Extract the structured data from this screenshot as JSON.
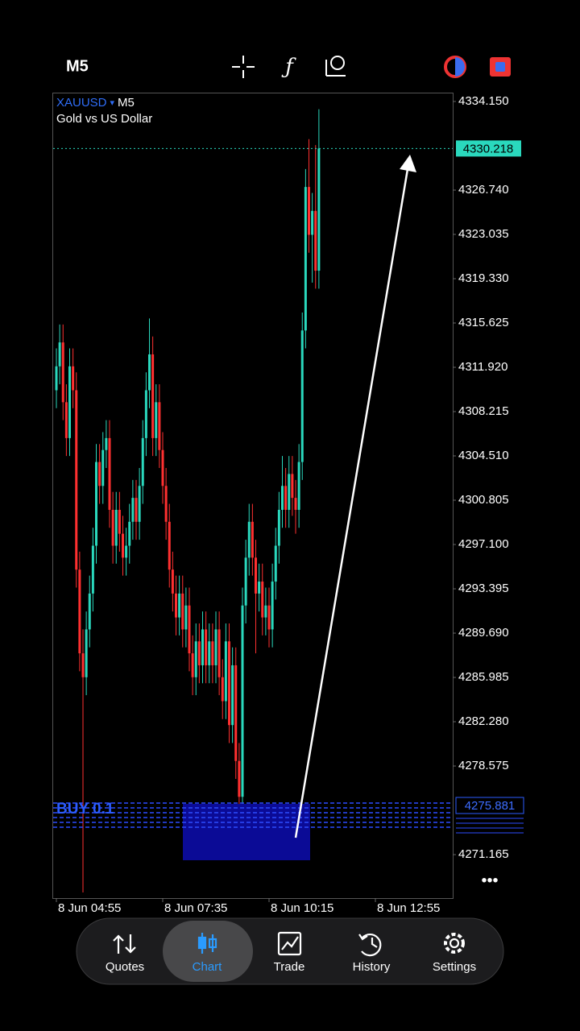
{
  "header": {
    "timeframe": "M5"
  },
  "chart": {
    "type": "candlestick",
    "symbol": "XAUUSD",
    "timeframe": "M5",
    "description": "Gold vs US Dollar",
    "bull_color": "#2ad8bd",
    "bear_color": "#ff3030",
    "ylim": [
      4267.53,
      4334.89
    ],
    "yticks": [
      {
        "value": 4334.15,
        "label": "4334.150"
      },
      {
        "value": 4326.74,
        "label": "4326.740"
      },
      4323.035,
      {
        "value": 4319.33,
        "label": "4319.330"
      },
      4315.625,
      {
        "value": 4311.92,
        "label": "4311.920"
      },
      4308.215,
      {
        "value": 4304.51,
        "label": "4304.510"
      },
      4300.805,
      {
        "value": 4297.1,
        "label": "4297.100"
      },
      4293.395,
      {
        "value": 4289.69,
        "label": "4289.690"
      },
      4285.985,
      {
        "value": 4282.28,
        "label": "4282.280"
      },
      4278.575,
      4271.165
    ],
    "bid": 4330.218,
    "position": {
      "label": "BUY 0.1",
      "price": 4275.881
    },
    "time_labels": [
      "8 Jun 04:55",
      "8 Jun 07:35",
      "8 Jun 10:15",
      "8 Jun 12:55"
    ],
    "ohlc": [
      [
        4310,
        4313.5,
        4308.5,
        4312
      ],
      [
        4312,
        4315.5,
        4310.5,
        4314
      ],
      [
        4314,
        4315.5,
        4307.5,
        4309
      ],
      [
        4309,
        4310.5,
        4304.5,
        4306
      ],
      [
        4306,
        4313.5,
        4304.5,
        4312
      ],
      [
        4312,
        4313.5,
        4308.5,
        4310
      ],
      [
        4310,
        4311.5,
        4293.5,
        4295
      ],
      [
        4295,
        4296.5,
        4286.5,
        4288
      ],
      [
        4288,
        4290,
        4268,
        4286
      ],
      [
        4286,
        4291.5,
        4284.5,
        4290
      ],
      [
        4290,
        4294.5,
        4288.5,
        4293
      ],
      [
        4293,
        4298.5,
        4291.5,
        4297
      ],
      [
        4297,
        4305.5,
        4295.5,
        4304
      ],
      [
        4304,
        4305.5,
        4300.5,
        4302
      ],
      [
        4302,
        4306.5,
        4300.5,
        4305
      ],
      [
        4305,
        4307.5,
        4303.5,
        4306
      ],
      [
        4306,
        4307.5,
        4298.5,
        4300
      ],
      [
        4300,
        4301.5,
        4295.5,
        4297
      ],
      [
        4297,
        4301.5,
        4295.5,
        4300
      ],
      [
        4300,
        4301.5,
        4296.5,
        4298
      ],
      [
        4298,
        4299.5,
        4294.5,
        4296
      ],
      [
        4296,
        4298.5,
        4294.5,
        4297
      ],
      [
        4297,
        4300.5,
        4295.5,
        4299
      ],
      [
        4299,
        4302.5,
        4297.5,
        4301
      ],
      [
        4301,
        4302.5,
        4297.5,
        4299
      ],
      [
        4299,
        4303.5,
        4297.5,
        4302
      ],
      [
        4302,
        4307.5,
        4300.5,
        4306
      ],
      [
        4306,
        4311.5,
        4304.5,
        4310
      ],
      [
        4310,
        4316,
        4308.5,
        4313
      ],
      [
        4313,
        4314.5,
        4304.5,
        4306
      ],
      [
        4306,
        4310.5,
        4304.5,
        4309
      ],
      [
        4309,
        4310.5,
        4303.5,
        4305
      ],
      [
        4305,
        4306.5,
        4300.5,
        4302
      ],
      [
        4302,
        4303.5,
        4297.5,
        4299
      ],
      [
        4299,
        4300.5,
        4293.5,
        4295
      ],
      [
        4295,
        4296.5,
        4291.5,
        4293
      ],
      [
        4293,
        4294.5,
        4289.5,
        4291
      ],
      [
        4291,
        4294.5,
        4289.5,
        4293
      ],
      [
        4293,
        4294.5,
        4288.5,
        4290
      ],
      [
        4290,
        4293.5,
        4288.5,
        4292
      ],
      [
        4292,
        4293.5,
        4286.5,
        4288
      ],
      [
        4288,
        4289.5,
        4284.5,
        4286
      ],
      [
        4286,
        4290.5,
        4284.5,
        4289
      ],
      [
        4289,
        4290.5,
        4285.5,
        4287
      ],
      [
        4287,
        4291.5,
        4285.5,
        4290
      ],
      [
        4290,
        4291.5,
        4285.5,
        4287
      ],
      [
        4287,
        4290.5,
        4285.5,
        4289
      ],
      [
        4289,
        4290.5,
        4285.5,
        4287
      ],
      [
        4287,
        4291.5,
        4285.5,
        4290
      ],
      [
        4290,
        4291.5,
        4284.5,
        4286
      ],
      [
        4286,
        4287.5,
        4282.5,
        4284
      ],
      [
        4284,
        4290.5,
        4282.5,
        4289
      ],
      [
        4289,
        4290.5,
        4280.5,
        4282
      ],
      [
        4282,
        4288.5,
        4280.5,
        4287
      ],
      [
        4287,
        4288.5,
        4277.5,
        4279
      ],
      [
        4279,
        4280.5,
        4274,
        4276
      ],
      [
        4276,
        4293.5,
        4274.5,
        4292
      ],
      [
        4292,
        4297.5,
        4290.5,
        4296
      ],
      [
        4296,
        4300.5,
        4294.5,
        4299
      ],
      [
        4299,
        4300.5,
        4294.5,
        4296
      ],
      [
        4296,
        4297.5,
        4288,
        4293
      ],
      [
        4293,
        4295.5,
        4291.5,
        4294
      ],
      [
        4294,
        4295.5,
        4289.5,
        4291
      ],
      [
        4291,
        4293.5,
        4289.5,
        4292
      ],
      [
        4292,
        4293.5,
        4288.5,
        4290
      ],
      [
        4290,
        4295.5,
        4288.5,
        4294
      ],
      [
        4294,
        4298.5,
        4292.5,
        4297
      ],
      [
        4297,
        4301.5,
        4295.5,
        4300
      ],
      [
        4300,
        4304.5,
        4298.5,
        4302
      ],
      [
        4302,
        4303.5,
        4298.5,
        4300
      ],
      [
        4300,
        4304.5,
        4298.5,
        4303
      ],
      [
        4303,
        4304.5,
        4299.5,
        4301
      ],
      [
        4301,
        4302.5,
        4298,
        4300
      ],
      [
        4300,
        4305.5,
        4298.5,
        4304
      ],
      [
        4304,
        4316.5,
        4302.5,
        4315
      ],
      [
        4315,
        4328.5,
        4313.5,
        4327
      ],
      [
        4327,
        4331,
        4321.5,
        4323
      ],
      [
        4323,
        4326.5,
        4319,
        4325
      ],
      [
        4325,
        4330.5,
        4318.5,
        4320
      ],
      [
        4320,
        4333.5,
        4318.5,
        4330.218
      ]
    ]
  },
  "nav": [
    {
      "label": "Quotes"
    },
    {
      "label": "Chart"
    },
    {
      "label": "Trade"
    },
    {
      "label": "History"
    },
    {
      "label": "Settings"
    }
  ]
}
